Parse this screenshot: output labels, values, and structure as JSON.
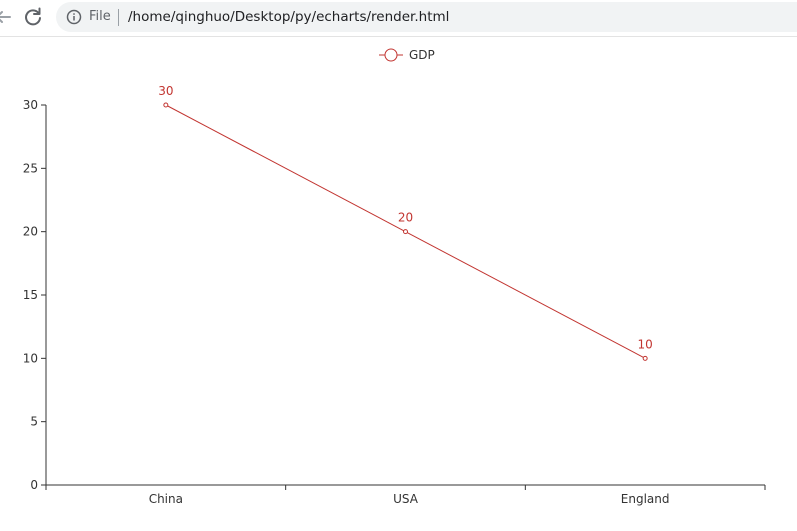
{
  "browser": {
    "back_icon": "arrow-left-icon",
    "reload_icon": "reload-icon",
    "info_icon": "info-icon",
    "file_label": "File",
    "url": "/home/qinghuo/Desktop/py/echarts/render.html"
  },
  "colors": {
    "series": "#c23531",
    "axis": "#333333",
    "address_bg": "#f1f3f4"
  },
  "chart_data": {
    "type": "line",
    "categories": [
      "China",
      "USA",
      "England"
    ],
    "series": [
      {
        "name": "GDP",
        "values": [
          30,
          20,
          10
        ],
        "color": "#c23531"
      }
    ],
    "ylim": [
      0,
      30
    ],
    "yticks": [
      0,
      5,
      10,
      15,
      20,
      25,
      30
    ],
    "legend_position": "top-center",
    "grid": false,
    "show_data_labels": true
  }
}
